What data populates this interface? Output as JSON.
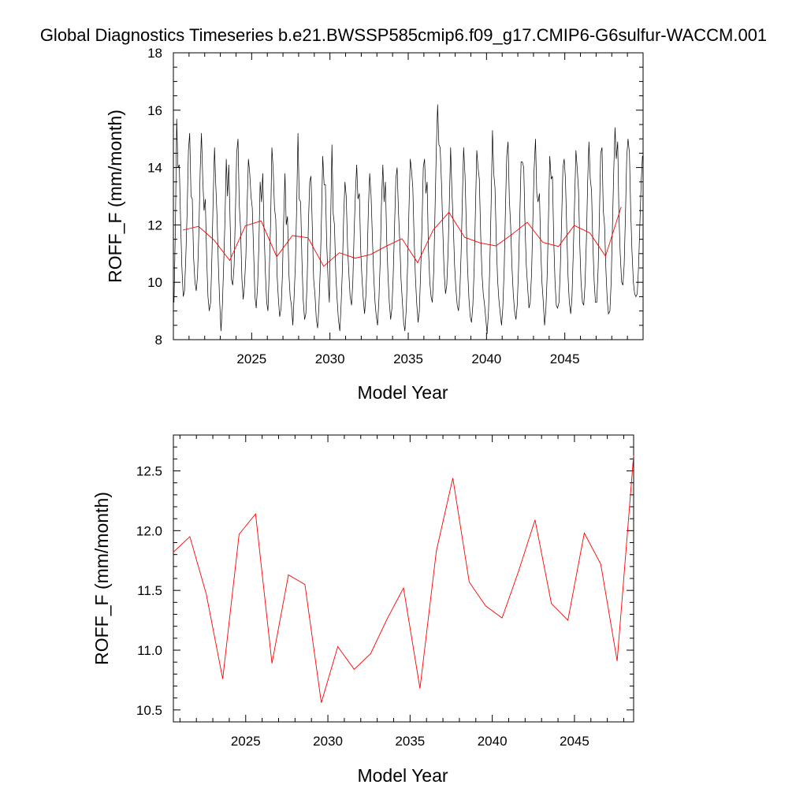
{
  "title": "Global Diagnostics Timeseries b.e21.BWSSP585cmip6.f09_g17.CMIP6-G6sulfur-WACCM.001",
  "colors": {
    "monthly": "#000000",
    "annual": "#ff0000",
    "axis": "#000000"
  },
  "chart_data": [
    {
      "type": "line",
      "xlabel": "Model Year",
      "ylabel": "ROFF_F (mm/month)",
      "xlim": [
        2020.0,
        2050.0
      ],
      "ylim": [
        8,
        18
      ],
      "xticks": [
        2025,
        2030,
        2035,
        2040,
        2045
      ],
      "xtick_labels": [
        "2025",
        "2030",
        "2035",
        "2040",
        "2045"
      ],
      "yticks": [
        8,
        10,
        12,
        14,
        16,
        18
      ],
      "ytick_labels": [
        "8",
        "10",
        "12",
        "14",
        "16",
        "18"
      ],
      "series": [
        {
          "x": [
            2020.04,
            2020.13,
            2020.21,
            2020.29,
            2020.38,
            2020.46,
            2020.54,
            2020.63,
            2020.71,
            2020.79,
            2020.88,
            2020.96,
            2021.04,
            2021.13,
            2021.21,
            2021.29,
            2021.38,
            2021.46,
            2021.54,
            2021.63,
            2021.71,
            2021.79,
            2021.88,
            2021.96,
            2022.04,
            2022.13,
            2022.21,
            2022.29,
            2022.38,
            2022.46,
            2022.54,
            2022.63,
            2022.71,
            2022.79,
            2022.88,
            2022.96,
            2023.04,
            2023.13,
            2023.21,
            2023.29,
            2023.38,
            2023.46,
            2023.54,
            2023.63,
            2023.71,
            2023.79,
            2023.88,
            2023.96,
            2024.04,
            2024.13,
            2024.21,
            2024.29,
            2024.38,
            2024.46,
            2024.54,
            2024.63,
            2024.71,
            2024.79,
            2024.88,
            2024.96,
            2025.04,
            2025.13,
            2025.21,
            2025.29,
            2025.38,
            2025.46,
            2025.54,
            2025.63,
            2025.71,
            2025.79,
            2025.88,
            2025.96,
            2026.04,
            2026.13,
            2026.21,
            2026.29,
            2026.38,
            2026.46,
            2026.54,
            2026.63,
            2026.71,
            2026.79,
            2026.88,
            2026.96,
            2027.04,
            2027.13,
            2027.21,
            2027.29,
            2027.38,
            2027.46,
            2027.54,
            2027.63,
            2027.71,
            2027.79,
            2027.88,
            2027.96,
            2028.04,
            2028.13,
            2028.21,
            2028.29,
            2028.38,
            2028.46,
            2028.54,
            2028.63,
            2028.71,
            2028.79,
            2028.88,
            2028.96,
            2029.04,
            2029.13,
            2029.21,
            2029.29,
            2029.38,
            2029.46,
            2029.54,
            2029.63,
            2029.71,
            2029.79,
            2029.88,
            2029.96
          ],
          "values": [
            9.3,
            12.0,
            15.7,
            14.0,
            14.1,
            12.2,
            10.6,
            9.5,
            9.7,
            10.8,
            12.5,
            14.6,
            15.2,
            13.0,
            12.9,
            10.9,
            10.0,
            9.7,
            10.2,
            11.8,
            13.9,
            15.2,
            13.6,
            12.5,
            12.9,
            10.8,
            9.5,
            9.0,
            9.3,
            10.9,
            12.9,
            14.7,
            13.4,
            12.3,
            10.5,
            9.3,
            8.3,
            9.2,
            10.6,
            12.1,
            14.3,
            13.0,
            14.1,
            12.0,
            10.1,
            9.9,
            10.6,
            12.4,
            14.5,
            15.0,
            12.7,
            11.9,
            10.1,
            9.4,
            9.9,
            10.9,
            12.7,
            14.3,
            13.8,
            13.0,
            12.6,
            11.0,
            9.5,
            9.1,
            9.9,
            11.3,
            13.5,
            12.8,
            13.8,
            11.9,
            10.3,
            9.3,
            9.0,
            10.5,
            12.1,
            14.7,
            13.9,
            12.6,
            12.2,
            10.2,
            9.4,
            8.8,
            9.1,
            10.2,
            12.1,
            13.8,
            12.0,
            12.3,
            10.3,
            9.5,
            9.2,
            8.5,
            9.5,
            10.6,
            12.7,
            15.2,
            12.9,
            12.8,
            10.8,
            9.4,
            8.7,
            8.9,
            10.0,
            12.1,
            13.5,
            13.7,
            11.8,
            10.1,
            9.6,
            8.7,
            8.4,
            9.1,
            10.4,
            12.2,
            14.4,
            13.4,
            13.4,
            11.4,
            10.1,
            9.3
          ]
        },
        {
          "x": [
            2030.04,
            2030.13,
            2030.21,
            2030.29,
            2030.38,
            2030.46,
            2030.54,
            2030.63,
            2030.71,
            2030.79,
            2030.88,
            2030.96,
            2031.04,
            2031.13,
            2031.21,
            2031.29,
            2031.38,
            2031.46,
            2031.54,
            2031.63,
            2031.71,
            2031.79,
            2031.88,
            2031.96,
            2032.04,
            2032.13,
            2032.21,
            2032.29,
            2032.38,
            2032.46,
            2032.54,
            2032.63,
            2032.71,
            2032.79,
            2032.88,
            2032.96,
            2033.04,
            2033.13,
            2033.21,
            2033.29,
            2033.38,
            2033.46,
            2033.54,
            2033.63,
            2033.71,
            2033.79,
            2033.88,
            2033.96,
            2034.04,
            2034.13,
            2034.21,
            2034.29,
            2034.38,
            2034.46,
            2034.54,
            2034.63,
            2034.71,
            2034.79,
            2034.88,
            2034.96,
            2035.04,
            2035.13,
            2035.21,
            2035.29,
            2035.38,
            2035.46,
            2035.54,
            2035.63,
            2035.71,
            2035.79,
            2035.88,
            2035.96,
            2036.04,
            2036.13,
            2036.21,
            2036.29,
            2036.38,
            2036.46,
            2036.54,
            2036.63,
            2036.71,
            2036.79,
            2036.88,
            2036.96,
            2037.04,
            2037.13,
            2037.21,
            2037.29,
            2037.38,
            2037.46,
            2037.54,
            2037.63,
            2037.71,
            2037.79,
            2037.88,
            2037.96,
            2038.04,
            2038.13,
            2038.21,
            2038.29,
            2038.38,
            2038.46,
            2038.54,
            2038.63,
            2038.71,
            2038.79,
            2038.88,
            2038.96,
            2039.04,
            2039.13,
            2039.21,
            2039.29,
            2039.38,
            2039.46,
            2039.54,
            2039.63,
            2039.71,
            2039.79,
            2039.88,
            2039.96
          ],
          "values": [
            12.0,
            14.8,
            12.4,
            12.0,
            10.2,
            9.4,
            8.7,
            8.3,
            9.2,
            10.4,
            12.3,
            13.5,
            13.0,
            11.2,
            10.3,
            9.5,
            9.2,
            10.0,
            11.7,
            13.1,
            14.1,
            12.9,
            13.1,
            11.2,
            10.2,
            9.4,
            8.9,
            9.5,
            10.8,
            12.6,
            13.8,
            13.0,
            11.6,
            10.3,
            9.3,
            8.8,
            8.5,
            9.4,
            10.7,
            12.7,
            14.1,
            12.8,
            13.5,
            11.4,
            10.2,
            9.3,
            8.7,
            9.1,
            10.2,
            12.0,
            13.6,
            14.0,
            12.4,
            11.4,
            10.1,
            9.3,
            8.6,
            8.3,
            9.1,
            10.6,
            12.4,
            14.3,
            13.9,
            13.3,
            11.5,
            10.2,
            9.3,
            8.6,
            9.0,
            10.3,
            12.0,
            14.0,
            14.3,
            13.1,
            13.5,
            11.2,
            10.0,
            9.5,
            9.3,
            10.4,
            12.5,
            14.6,
            16.2,
            14.8,
            14.7,
            13.4,
            11.8,
            10.4,
            9.6,
            9.9,
            11.0,
            12.8,
            14.7,
            13.2,
            12.0,
            10.6,
            9.8,
            9.2,
            9.0,
            9.6,
            11.0,
            12.9,
            14.7,
            13.7,
            12.0,
            10.5,
            9.4,
            8.8,
            8.6,
            9.2,
            10.4,
            12.4,
            14.6,
            14.0,
            13.6,
            11.6,
            10.3,
            9.6,
            9.2,
            8.7
          ]
        },
        {
          "x": [
            2040.04,
            2040.13,
            2040.21,
            2040.29,
            2040.38,
            2040.46,
            2040.54,
            2040.63,
            2040.71,
            2040.79,
            2040.88,
            2040.96,
            2041.04,
            2041.13,
            2041.21,
            2041.29,
            2041.38,
            2041.46,
            2041.54,
            2041.63,
            2041.71,
            2041.79,
            2041.88,
            2041.96,
            2042.04,
            2042.13,
            2042.21,
            2042.29,
            2042.38,
            2042.46,
            2042.54,
            2042.63,
            2042.71,
            2042.79,
            2042.88,
            2042.96,
            2043.04,
            2043.13,
            2043.21,
            2043.29,
            2043.38,
            2043.46,
            2043.54,
            2043.63,
            2043.71,
            2043.79,
            2043.88,
            2043.96,
            2044.04,
            2044.13,
            2044.21,
            2044.29,
            2044.38,
            2044.46,
            2044.54,
            2044.63,
            2044.71,
            2044.79,
            2044.88,
            2044.96,
            2045.04,
            2045.13,
            2045.21,
            2045.29,
            2045.38,
            2045.46,
            2045.54,
            2045.63,
            2045.71,
            2045.79,
            2045.88,
            2045.96,
            2046.04,
            2046.13,
            2046.21,
            2046.29,
            2046.38,
            2046.46,
            2046.54,
            2046.63,
            2046.71,
            2046.79,
            2046.88,
            2046.96,
            2047.04,
            2047.13,
            2047.21,
            2047.29,
            2047.38,
            2047.46,
            2047.54,
            2047.63,
            2047.71,
            2047.79,
            2047.88,
            2047.96,
            2048.04,
            2048.13,
            2048.21,
            2048.29,
            2048.38,
            2048.46,
            2048.54,
            2048.63,
            2048.71,
            2048.79,
            2048.88,
            2048.96,
            2049.04,
            2049.13,
            2049.21,
            2049.29,
            2049.38,
            2049.46,
            2049.54,
            2049.63,
            2049.71,
            2049.79,
            2049.88,
            2049.96
          ],
          "values": [
            8.2,
            9.0,
            10.6,
            12.6,
            15.3,
            13.8,
            13.3,
            11.4,
            10.1,
            9.4,
            8.9,
            8.5,
            9.1,
            10.5,
            12.6,
            14.4,
            14.9,
            12.9,
            12.0,
            10.5,
            9.6,
            9.0,
            8.7,
            9.2,
            10.4,
            12.3,
            14.2,
            14.2,
            14.0,
            12.0,
            10.6,
            9.8,
            9.1,
            9.3,
            10.3,
            12.1,
            13.9,
            15.0,
            13.1,
            12.8,
            13.1,
            11.2,
            10.0,
            9.3,
            8.5,
            9.0,
            10.3,
            12.3,
            14.4,
            13.6,
            13.7,
            11.5,
            10.0,
            9.2,
            9.1,
            9.3,
            10.4,
            12.0,
            14.0,
            14.3,
            13.6,
            11.8,
            10.2,
            9.3,
            8.9,
            9.5,
            11.0,
            12.9,
            14.6,
            14.0,
            13.2,
            11.3,
            10.0,
            9.3,
            9.2,
            9.9,
            11.5,
            13.5,
            14.9,
            13.6,
            13.2,
            11.4,
            10.0,
            9.3,
            9.3,
            10.5,
            12.3,
            14.5,
            14.7,
            12.5,
            12.0,
            10.4,
            9.4,
            8.9,
            9.0,
            10.0,
            11.9,
            13.9,
            15.4,
            14.3,
            14.9,
            12.3,
            11.0,
            10.0,
            9.9,
            10.6,
            12.4,
            14.4,
            15.0,
            14.5,
            12.5,
            11.1,
            10.0,
            9.6,
            9.5,
            9.6,
            10.5,
            11.9,
            13.5,
            14.4
          ]
        },
        {
          "x": [
            2020.6,
            2021.6,
            2022.6,
            2023.6,
            2024.6,
            2025.6,
            2026.6,
            2027.6,
            2028.6,
            2029.6,
            2030.6,
            2031.6,
            2032.6,
            2033.6,
            2034.6,
            2035.6,
            2036.6,
            2037.6,
            2038.6,
            2039.6,
            2040.6,
            2041.6,
            2042.6,
            2043.6,
            2044.6,
            2045.6,
            2046.6,
            2047.6,
            2048.6
          ],
          "values": [
            11.82,
            11.95,
            11.47,
            10.76,
            11.97,
            12.14,
            10.89,
            11.63,
            11.55,
            10.56,
            11.03,
            10.84,
            10.97,
            11.26,
            11.52,
            10.68,
            11.83,
            12.44,
            11.57,
            11.37,
            11.27,
            11.66,
            12.09,
            11.39,
            11.25,
            11.98,
            11.72,
            10.91,
            12.63
          ]
        }
      ]
    },
    {
      "type": "line",
      "xlabel": "Model Year",
      "ylabel": "ROFF_F (mm/month)",
      "xlim": [
        2020.6,
        2048.6
      ],
      "ylim": [
        10.4,
        12.8
      ],
      "xticks": [
        2025,
        2030,
        2035,
        2040,
        2045
      ],
      "xtick_labels": [
        "2025",
        "2030",
        "2035",
        "2040",
        "2045"
      ],
      "yticks": [
        10.5,
        11.0,
        11.5,
        12.0,
        12.5
      ],
      "ytick_labels": [
        "10.5",
        "11.0",
        "11.5",
        "12.0",
        "12.5"
      ],
      "series": [
        {
          "x": [
            2020.6,
            2021.6,
            2022.6,
            2023.6,
            2024.6,
            2025.6,
            2026.6,
            2027.6,
            2028.6,
            2029.6,
            2030.6,
            2031.6,
            2032.6,
            2033.6,
            2034.6,
            2035.6,
            2036.6,
            2037.6,
            2038.6,
            2039.6,
            2040.6,
            2041.6,
            2042.6,
            2043.6,
            2044.6,
            2045.6,
            2046.6,
            2047.6,
            2048.6
          ],
          "values": [
            11.82,
            11.95,
            11.47,
            10.76,
            11.97,
            12.14,
            10.89,
            11.63,
            11.55,
            10.56,
            11.03,
            10.84,
            10.97,
            11.26,
            11.52,
            10.68,
            11.83,
            12.44,
            11.57,
            11.37,
            11.27,
            11.66,
            12.09,
            11.39,
            11.25,
            11.98,
            11.72,
            10.91,
            12.63
          ]
        }
      ]
    }
  ]
}
